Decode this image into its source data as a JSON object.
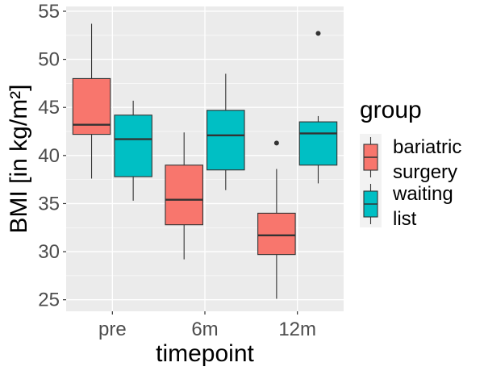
{
  "chart_data": {
    "type": "boxplot",
    "xlabel": "timepoint",
    "ylabel": "BMI [in kg/m²]",
    "categories": [
      "pre",
      "6m",
      "12m"
    ],
    "ylim": [
      23.8,
      55.5
    ],
    "yticks": [
      25,
      30,
      35,
      40,
      45,
      50,
      55
    ],
    "grid": true,
    "legend": {
      "title": "group",
      "position": "right"
    },
    "series": [
      {
        "name": "bariatric surgery",
        "name_lines": [
          "bariatric",
          "surgery"
        ],
        "color": "#F8766D",
        "boxes": [
          {
            "category": "pre",
            "min": 37.6,
            "q1": 42.2,
            "median": 43.2,
            "q3": 48.0,
            "max": 53.7,
            "outliers": []
          },
          {
            "category": "6m",
            "min": 29.2,
            "q1": 32.8,
            "median": 35.4,
            "q3": 39.0,
            "max": 42.4,
            "outliers": []
          },
          {
            "category": "12m",
            "min": 25.1,
            "q1": 29.7,
            "median": 31.7,
            "q3": 34.0,
            "max": 38.6,
            "outliers": [
              41.3
            ]
          }
        ]
      },
      {
        "name": "waiting list",
        "name_lines": [
          "waiting",
          "list"
        ],
        "color": "#00BFC4",
        "boxes": [
          {
            "category": "pre",
            "min": 35.3,
            "q1": 37.8,
            "median": 41.7,
            "q3": 44.2,
            "max": 45.7,
            "outliers": []
          },
          {
            "category": "6m",
            "min": 36.4,
            "q1": 38.5,
            "median": 42.1,
            "q3": 44.7,
            "max": 48.5,
            "outliers": []
          },
          {
            "category": "12m",
            "min": 37.1,
            "q1": 39.0,
            "median": 42.3,
            "q3": 43.5,
            "max": 44.1,
            "outliers": [
              52.7
            ]
          }
        ]
      }
    ]
  }
}
